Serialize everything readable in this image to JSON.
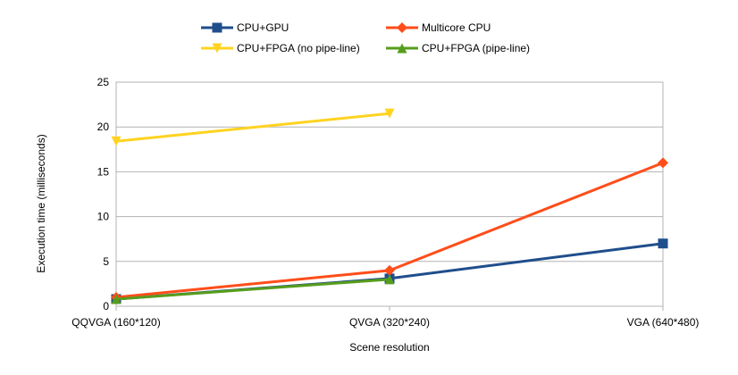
{
  "chart_data": {
    "type": "line",
    "title": "",
    "xlabel": "Scene resolution",
    "ylabel": "Execution time (milliseconds)",
    "categories": [
      "QQVGA (160*120)",
      "QVGA (320*240)",
      "VGA (640*480)"
    ],
    "ylim": [
      0,
      25
    ],
    "yticks": [
      0,
      5,
      10,
      15,
      20,
      25
    ],
    "grid": "horizontal",
    "legend_position": "top",
    "series": [
      {
        "name": "CPU+GPU",
        "values": [
          0.8,
          3.1,
          7.0
        ],
        "color": "#1f4e8c",
        "marker": "square"
      },
      {
        "name": "Multicore CPU",
        "values": [
          1.0,
          4.0,
          16.0
        ],
        "color": "#ff4d1a",
        "marker": "diamond"
      },
      {
        "name": "CPU+FPGA (no pipe-line)",
        "values": [
          18.4,
          21.5,
          null
        ],
        "color": "#ffd320",
        "marker": "triangle-down"
      },
      {
        "name": "CPU+FPGA (pipe-line)",
        "values": [
          0.8,
          3.0,
          null
        ],
        "color": "#579d1c",
        "marker": "triangle-up"
      }
    ]
  }
}
